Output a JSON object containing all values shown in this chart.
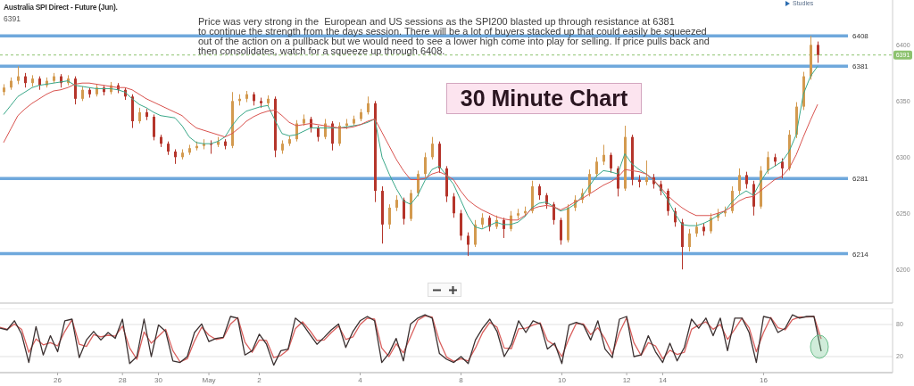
{
  "chart_data": [
    {
      "type": "candlestick",
      "title": "Australia SPI Direct - Future (Jun).",
      "subtitle": "6391",
      "annotations": [
        "Price was very strong in the  European and US sessions as the SPI200 blasted up through resistance at 6381\nto continue the strength from the days session. There will be a lot of buyers stacked up that could easily be squeezed\nout of the action on a pullback but we would need to see a lower high come into play for selling. If price pulls back and\nthen consolidates, watch for a squeeze up through 6408.",
        "30 Minute Chart",
        "Studies"
      ],
      "categories": [
        null,
        null,
        null,
        null,
        null,
        null,
        null,
        null,
        null,
        null,
        null,
        null,
        null,
        null,
        null,
        null,
        null,
        null,
        null,
        null,
        null,
        null,
        null,
        null,
        null,
        null,
        null,
        null,
        null,
        null,
        null,
        null,
        null,
        null,
        null,
        null,
        null,
        null,
        null,
        null,
        null,
        null,
        null,
        null,
        null,
        null,
        null,
        null,
        null,
        null,
        null,
        null,
        null,
        null,
        null,
        null,
        null,
        null,
        null,
        null,
        null,
        null,
        null,
        null,
        null,
        null,
        null,
        null,
        null,
        null,
        null,
        null,
        null,
        null,
        null,
        null,
        null,
        null,
        null,
        null,
        null,
        null,
        null,
        null,
        null,
        null,
        null,
        null,
        null,
        null,
        null,
        null,
        null,
        null,
        null,
        null,
        null,
        null,
        null,
        null,
        null,
        null,
        null,
        null,
        null,
        null,
        null,
        null,
        null,
        null,
        null,
        null,
        null,
        null,
        null
      ],
      "ohlc": [
        [
          6358,
          6365,
          6355,
          6362
        ],
        [
          6362,
          6371,
          6360,
          6368
        ],
        [
          6368,
          6381,
          6365,
          6372
        ],
        [
          6372,
          6375,
          6362,
          6366
        ],
        [
          6366,
          6373,
          6363,
          6370
        ],
        [
          6370,
          6372,
          6360,
          6364
        ],
        [
          6364,
          6371,
          6362,
          6368
        ],
        [
          6368,
          6375,
          6366,
          6372
        ],
        [
          6372,
          6374,
          6362,
          6366
        ],
        [
          6366,
          6373,
          6364,
          6370
        ],
        [
          6370,
          6372,
          6347,
          6352
        ],
        [
          6352,
          6363,
          6350,
          6360
        ],
        [
          6360,
          6362,
          6353,
          6356
        ],
        [
          6356,
          6365,
          6354,
          6362
        ],
        [
          6362,
          6364,
          6355,
          6358
        ],
        [
          6358,
          6367,
          6356,
          6364
        ],
        [
          6364,
          6366,
          6357,
          6360
        ],
        [
          6360,
          6362,
          6351,
          6354
        ],
        [
          6354,
          6356,
          6326,
          6332
        ],
        [
          6332,
          6344,
          6330,
          6340
        ],
        [
          6340,
          6343,
          6333,
          6336
        ],
        [
          6336,
          6338,
          6315,
          6318
        ],
        [
          6318,
          6320,
          6309,
          6312
        ],
        [
          6312,
          6314,
          6302,
          6305
        ],
        [
          6305,
          6307,
          6294,
          6300
        ],
        [
          6300,
          6307,
          6298,
          6304
        ],
        [
          6304,
          6311,
          6302,
          6308
        ],
        [
          6308,
          6314,
          6306,
          6310
        ],
        [
          6310,
          6316,
          6307,
          6312
        ],
        [
          6312,
          6315,
          6303,
          6311
        ],
        [
          6311,
          6318,
          6309,
          6314
        ],
        [
          6314,
          6316,
          6307,
          6310
        ],
        [
          6310,
          6358,
          6308,
          6350
        ],
        [
          6350,
          6356,
          6346,
          6352
        ],
        [
          6352,
          6359,
          6349,
          6356
        ],
        [
          6356,
          6358,
          6346,
          6350
        ],
        [
          6350,
          6353,
          6344,
          6348
        ],
        [
          6348,
          6355,
          6345,
          6352
        ],
        [
          6352,
          6354,
          6300,
          6306
        ],
        [
          6306,
          6315,
          6303,
          6312
        ],
        [
          6312,
          6319,
          6310,
          6316
        ],
        [
          6316,
          6333,
          6314,
          6330
        ],
        [
          6330,
          6338,
          6328,
          6334
        ],
        [
          6334,
          6336,
          6322,
          6326
        ],
        [
          6326,
          6328,
          6314,
          6318
        ],
        [
          6318,
          6334,
          6316,
          6330
        ],
        [
          6330,
          6332,
          6306,
          6312
        ],
        [
          6312,
          6331,
          6310,
          6328
        ],
        [
          6328,
          6334,
          6325,
          6330
        ],
        [
          6330,
          6337,
          6328,
          6334
        ],
        [
          6334,
          6343,
          6332,
          6340
        ],
        [
          6340,
          6354,
          6338,
          6348
        ],
        [
          6348,
          6350,
          6260,
          6270
        ],
        [
          6270,
          6274,
          6223,
          6240
        ],
        [
          6240,
          6258,
          6236,
          6255
        ],
        [
          6255,
          6266,
          6252,
          6262
        ],
        [
          6262,
          6264,
          6240,
          6245
        ],
        [
          6245,
          6271,
          6243,
          6268
        ],
        [
          6268,
          6288,
          6265,
          6285
        ],
        [
          6285,
          6304,
          6282,
          6300
        ],
        [
          6300,
          6318,
          6298,
          6312
        ],
        [
          6312,
          6314,
          6286,
          6290
        ],
        [
          6290,
          6292,
          6260,
          6265
        ],
        [
          6265,
          6268,
          6246,
          6250
        ],
        [
          6250,
          6253,
          6226,
          6230
        ],
        [
          6230,
          6233,
          6212,
          6222
        ],
        [
          6222,
          6244,
          6220,
          6240
        ],
        [
          6240,
          6250,
          6237,
          6246
        ],
        [
          6246,
          6248,
          6234,
          6238
        ],
        [
          6238,
          6248,
          6236,
          6244
        ],
        [
          6244,
          6246,
          6228,
          6236
        ],
        [
          6236,
          6252,
          6234,
          6248
        ],
        [
          6248,
          6254,
          6245,
          6250
        ],
        [
          6250,
          6256,
          6247,
          6252
        ],
        [
          6252,
          6279,
          6250,
          6274
        ],
        [
          6274,
          6276,
          6262,
          6266
        ],
        [
          6266,
          6268,
          6254,
          6258
        ],
        [
          6258,
          6260,
          6240,
          6244
        ],
        [
          6244,
          6246,
          6222,
          6226
        ],
        [
          6226,
          6258,
          6224,
          6255
        ],
        [
          6255,
          6266,
          6252,
          6262
        ],
        [
          6262,
          6272,
          6259,
          6268
        ],
        [
          6268,
          6289,
          6265,
          6285
        ],
        [
          6285,
          6300,
          6282,
          6296
        ],
        [
          6296,
          6311,
          6293,
          6302
        ],
        [
          6302,
          6304,
          6286,
          6290
        ],
        [
          6290,
          6292,
          6265,
          6272
        ],
        [
          6272,
          6328,
          6270,
          6318
        ],
        [
          6318,
          6320,
          6275,
          6280
        ],
        [
          6280,
          6284,
          6273,
          6278
        ],
        [
          6278,
          6297,
          6275,
          6282
        ],
        [
          6282,
          6285,
          6272,
          6276
        ],
        [
          6276,
          6279,
          6266,
          6270
        ],
        [
          6270,
          6272,
          6248,
          6252
        ],
        [
          6252,
          6255,
          6238,
          6242
        ],
        [
          6242,
          6245,
          6200,
          6220
        ],
        [
          6220,
          6236,
          6216,
          6232
        ],
        [
          6232,
          6242,
          6229,
          6238
        ],
        [
          6238,
          6241,
          6230,
          6234
        ],
        [
          6234,
          6250,
          6232,
          6246
        ],
        [
          6246,
          6254,
          6243,
          6250
        ],
        [
          6250,
          6256,
          6247,
          6252
        ],
        [
          6252,
          6274,
          6250,
          6270
        ],
        [
          6270,
          6290,
          6267,
          6284
        ],
        [
          6284,
          6287,
          6272,
          6276
        ],
        [
          6276,
          6279,
          6248,
          6256
        ],
        [
          6256,
          6292,
          6254,
          6288
        ],
        [
          6288,
          6305,
          6285,
          6300
        ],
        [
          6300,
          6303,
          6292,
          6296
        ],
        [
          6296,
          6299,
          6281,
          6290
        ],
        [
          6290,
          6324,
          6288,
          6320
        ],
        [
          6320,
          6349,
          6317,
          6345
        ],
        [
          6345,
          6376,
          6342,
          6372
        ],
        [
          6372,
          6408,
          6369,
          6400
        ],
        [
          6400,
          6403,
          6384,
          6391
        ]
      ],
      "colors": [
        "#d39a4f",
        "#d39a4f",
        "#d39a4f",
        "#b5352b",
        "#d39a4f",
        "#b5352b",
        "#d39a4f",
        "#d39a4f",
        "#b5352b",
        "#d39a4f",
        "#b5352b",
        "#d39a4f",
        "#b5352b",
        "#d39a4f",
        "#b5352b",
        "#d39a4f",
        "#b5352b",
        "#b5352b",
        "#b5352b",
        "#d39a4f",
        "#b5352b",
        "#b5352b",
        "#b5352b",
        "#b5352b",
        "#b5352b",
        "#d39a4f",
        "#d39a4f",
        "#d39a4f",
        "#d39a4f",
        "#b5352b",
        "#d39a4f",
        "#b5352b",
        "#d39a4f",
        "#d39a4f",
        "#d39a4f",
        "#b5352b",
        "#b5352b",
        "#d39a4f",
        "#b5352b",
        "#d39a4f",
        "#d39a4f",
        "#d39a4f",
        "#d39a4f",
        "#b5352b",
        "#b5352b",
        "#d39a4f",
        "#b5352b",
        "#d39a4f",
        "#d39a4f",
        "#d39a4f",
        "#d39a4f",
        "#d39a4f",
        "#b5352b",
        "#b5352b",
        "#d39a4f",
        "#d39a4f",
        "#b5352b",
        "#d39a4f",
        "#d39a4f",
        "#d39a4f",
        "#d39a4f",
        "#b5352b",
        "#b5352b",
        "#b5352b",
        "#b5352b",
        "#b5352b",
        "#d39a4f",
        "#d39a4f",
        "#b5352b",
        "#d39a4f",
        "#b5352b",
        "#d39a4f",
        "#d39a4f",
        "#d39a4f",
        "#d39a4f",
        "#b5352b",
        "#b5352b",
        "#b5352b",
        "#b5352b",
        "#d39a4f",
        "#d39a4f",
        "#d39a4f",
        "#d39a4f",
        "#d39a4f",
        "#d39a4f",
        "#b5352b",
        "#b5352b",
        "#d39a4f",
        "#b5352b",
        "#b5352b",
        "#d39a4f",
        "#b5352b",
        "#b5352b",
        "#b5352b",
        "#b5352b",
        "#b5352b",
        "#d39a4f",
        "#d39a4f",
        "#b5352b",
        "#d39a4f",
        "#d39a4f",
        "#d39a4f",
        "#d39a4f",
        "#d39a4f",
        "#b5352b",
        "#b5352b",
        "#d39a4f",
        "#d39a4f",
        "#b5352b",
        "#b5352b",
        "#d39a4f",
        "#d39a4f",
        "#d39a4f",
        "#d39a4f",
        "#b5352b"
      ],
      "series": [
        {
          "type": "line",
          "color": "#3aa889",
          "values": [
            6338,
            6346,
            6354,
            6358,
            6362,
            6364,
            6365,
            6366,
            6367,
            6368,
            6364,
            6363,
            6362,
            6361,
            6361,
            6361,
            6360,
            6358,
            6352,
            6347,
            6344,
            6340,
            6337,
            6336,
            6335,
            6328,
            6318,
            6313,
            6312,
            6312,
            6314,
            6318,
            6328,
            6336,
            6341,
            6343,
            6345,
            6346,
            6333,
            6321,
            6319,
            6320,
            6323,
            6326,
            6326,
            6326,
            6326,
            6326,
            6327,
            6328,
            6329,
            6331,
            6334,
            6300,
            6285,
            6272,
            6261,
            6258,
            6266,
            6279,
            6289,
            6292,
            6284,
            6276,
            6262,
            6248,
            6238,
            6236,
            6239,
            6242,
            6240,
            6240,
            6242,
            6247,
            6255,
            6259,
            6260,
            6256,
            6252,
            6254,
            6258,
            6265,
            6274,
            6283,
            6288,
            6287,
            6285,
            6303,
            6294,
            6289,
            6285,
            6280,
            6272,
            6262,
            6250,
            6240,
            6239,
            6239,
            6241,
            6244,
            6248,
            6252,
            6260,
            6266,
            6270,
            6266,
            6278,
            6288,
            6292,
            6296,
            6305,
            6320,
            6356,
            6372,
            6381
          ]
        },
        {
          "type": "line",
          "color": "#d9534f",
          "values": [
            6313,
            6325,
            6337,
            6343,
            6348,
            6352,
            6356,
            6359,
            6360,
            6362,
            6365,
            6366,
            6366,
            6365,
            6364,
            6363,
            6362,
            6362,
            6360,
            6356,
            6352,
            6349,
            6346,
            6343,
            6340,
            6337,
            6331,
            6326,
            6324,
            6322,
            6320,
            6318,
            6321,
            6326,
            6332,
            6336,
            6339,
            6341,
            6342,
            6337,
            6331,
            6328,
            6329,
            6330,
            6329,
            6328,
            6327,
            6326,
            6326,
            6327,
            6329,
            6332,
            6334,
            6322,
            6310,
            6298,
            6288,
            6280,
            6280,
            6281,
            6285,
            6287,
            6284,
            6280,
            6270,
            6262,
            6257,
            6253,
            6250,
            6247,
            6245,
            6244,
            6244,
            6248,
            6254,
            6256,
            6257,
            6256,
            6253,
            6256,
            6260,
            6263,
            6267,
            6271,
            6275,
            6278,
            6282,
            6289,
            6288,
            6287,
            6285,
            6280,
            6273,
            6266,
            6260,
            6255,
            6251,
            6248,
            6248,
            6248,
            6250,
            6252,
            6256,
            6261,
            6264,
            6265,
            6270,
            6275,
            6280,
            6283,
            6290,
            6302,
            6318,
            6333,
            6347
          ]
        }
      ],
      "ylim": [
        6170,
        6440
      ],
      "yticks": [
        6200,
        6250,
        6300,
        6350,
        6400
      ],
      "ref_lines": [
        {
          "axis": "y",
          "value": 6408,
          "label": "6408",
          "color": "#6fa8dc",
          "line_style": "solid"
        },
        {
          "axis": "y",
          "value": 6381,
          "label": "6381",
          "color": "#6fa8dc",
          "line_style": "solid"
        },
        {
          "axis": "y",
          "value": 6281,
          "label": "6281",
          "color": "#6fa8dc",
          "line_style": "solid"
        },
        {
          "axis": "y",
          "value": 6214,
          "label": "6214",
          "color": "#6fa8dc",
          "line_style": "solid"
        },
        {
          "axis": "y",
          "value": 6391,
          "label": "6391",
          "color": "#8dc26f",
          "line_style": "dashed"
        }
      ],
      "tick_labels": "y"
    },
    {
      "type": "line",
      "categories": [
        null,
        null,
        null,
        null,
        null,
        null,
        null,
        null,
        "26",
        null,
        null,
        null,
        null,
        null,
        null,
        null,
        null,
        "28",
        null,
        null,
        null,
        null,
        "30",
        null,
        null,
        null,
        null,
        null,
        null,
        "May",
        null,
        null,
        null,
        null,
        null,
        null,
        "2",
        null,
        null,
        null,
        null,
        null,
        null,
        null,
        null,
        null,
        null,
        null,
        null,
        null,
        "4",
        null,
        null,
        null,
        null,
        null,
        null,
        null,
        null,
        null,
        null,
        null,
        null,
        null,
        "8",
        null,
        null,
        null,
        null,
        null,
        null,
        null,
        null,
        null,
        null,
        null,
        null,
        null,
        "10",
        null,
        null,
        null,
        null,
        null,
        null,
        null,
        null,
        "12",
        null,
        null,
        null,
        null,
        "14",
        null,
        null,
        null,
        null,
        null,
        null,
        null,
        null,
        null,
        null,
        null,
        null,
        null,
        "16",
        null,
        null,
        null,
        null,
        null,
        null,
        null,
        null
      ],
      "series": [
        {
          "color": "#d9605e",
          "values": [
            75,
            71,
            81,
            71,
            28,
            53,
            42,
            46,
            40,
            67,
            89,
            43,
            39,
            61,
            57,
            60,
            58,
            77,
            36,
            15,
            66,
            45,
            58,
            71,
            31,
            10,
            16,
            49,
            75,
            60,
            52,
            55,
            81,
            93,
            47,
            28,
            51,
            50,
            18,
            22,
            33,
            72,
            85,
            69,
            50,
            51,
            65,
            77,
            52,
            57,
            80,
            92,
            90,
            36,
            20,
            44,
            27,
            57,
            88,
            96,
            94,
            49,
            19,
            11,
            16,
            12,
            36,
            65,
            84,
            75,
            36,
            35,
            72,
            73,
            79,
            83,
            50,
            41,
            20,
            54,
            82,
            81,
            61,
            74,
            53,
            24,
            65,
            93,
            46,
            22,
            46,
            40,
            16,
            32,
            24,
            28,
            71,
            79,
            85,
            71,
            80,
            52,
            71,
            92,
            74,
            29,
            65,
            93,
            74,
            70,
            89,
            94,
            94,
            95,
            53
          ]
        },
        {
          "color": "#3a3030",
          "values": [
            73,
            70,
            87,
            62,
            9,
            76,
            23,
            59,
            29,
            87,
            90,
            18,
            51,
            67,
            51,
            65,
            54,
            90,
            7,
            20,
            90,
            20,
            79,
            67,
            12,
            9,
            20,
            65,
            81,
            48,
            54,
            56,
            95,
            92,
            23,
            31,
            62,
            43,
            4,
            31,
            34,
            92,
            81,
            62,
            43,
            56,
            70,
            81,
            37,
            67,
            87,
            95,
            87,
            9,
            26,
            54,
            12,
            81,
            92,
            98,
            92,
            26,
            15,
            9,
            20,
            7,
            51,
            73,
            90,
            67,
            20,
            43,
            87,
            65,
            87,
            81,
            34,
            45,
            7,
            79,
            84,
            79,
            51,
            87,
            34,
            18,
            90,
            95,
            20,
            23,
            59,
            29,
            9,
            45,
            12,
            37,
            90,
            73,
            92,
            59,
            92,
            31,
            92,
            92,
            65,
            9,
            95,
            92,
            65,
            73,
            98,
            92,
            95,
            95,
            30
          ]
        }
      ],
      "ylim": [
        -10,
        110
      ],
      "yticks": [
        20,
        80
      ],
      "grid": "y"
    }
  ]
}
